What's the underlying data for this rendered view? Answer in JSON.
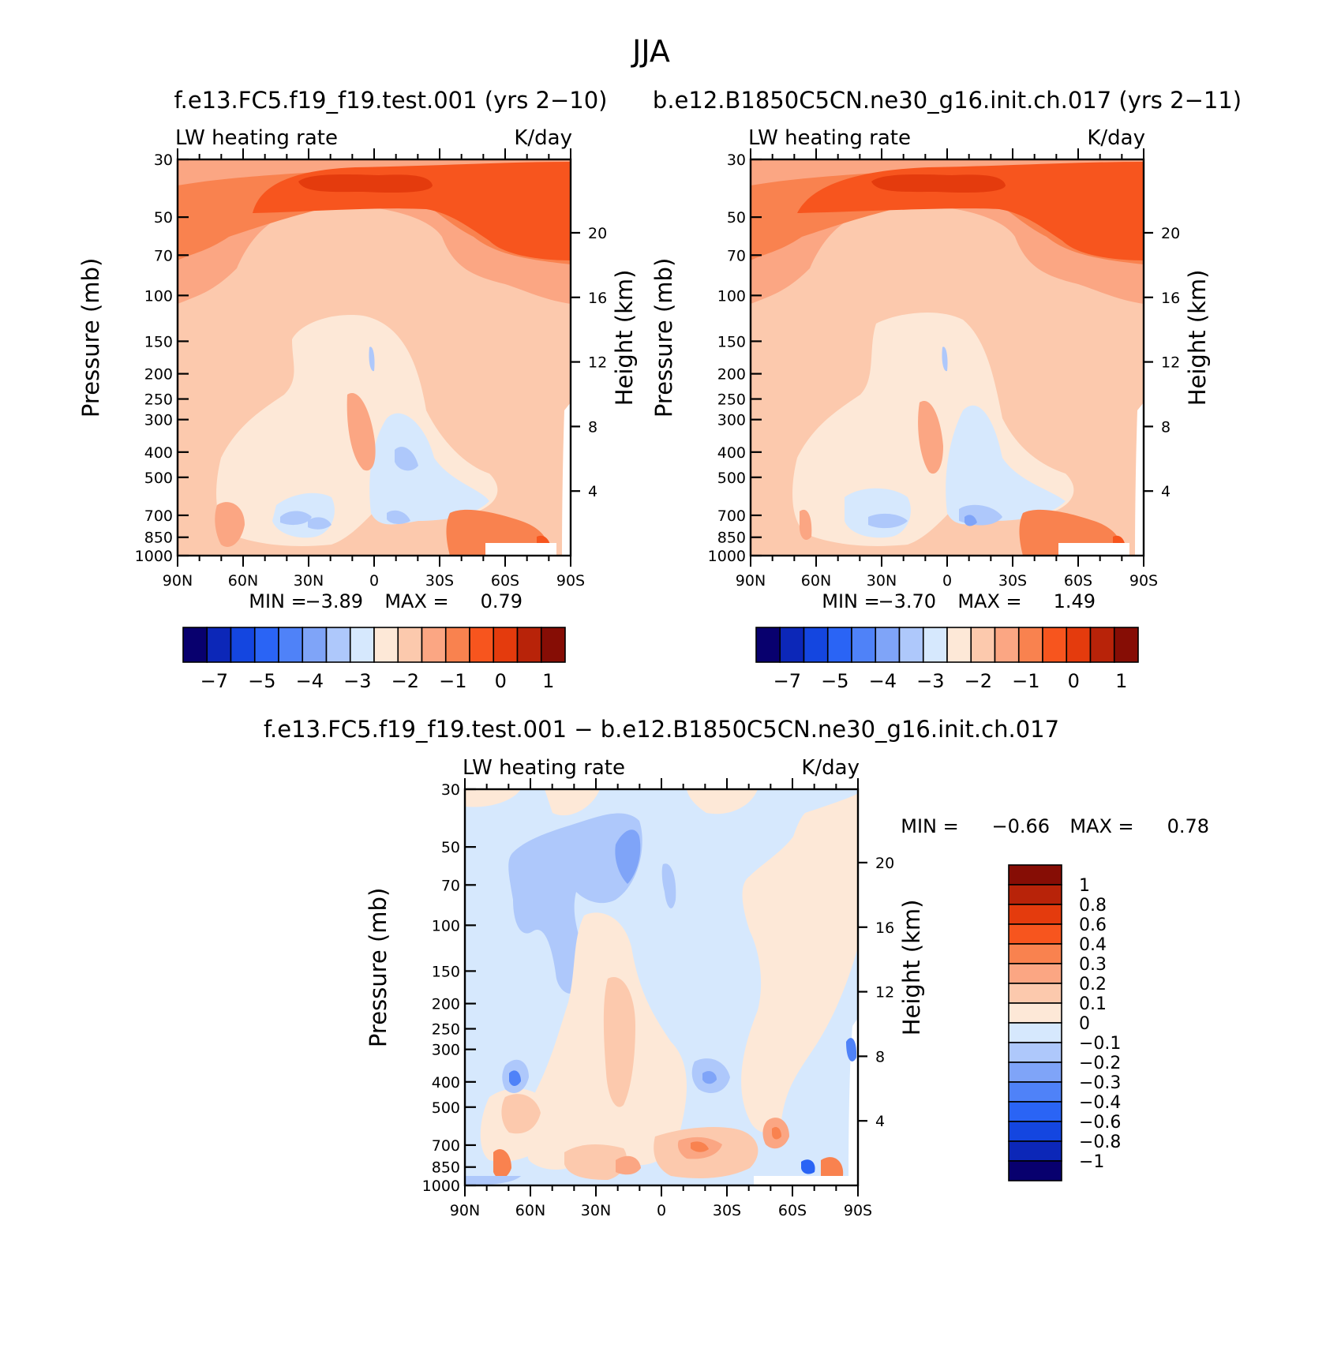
{
  "page": {
    "title": "JJA",
    "panel_top_left_title": "f.e13.FC5.f19_f19.test.001  (yrs 2−10)",
    "panel_top_right_title": "b.e12.B1850C5CN.ne30_g16.init.ch.017  (yrs 2−11)",
    "panel_bottom_title": "f.e13.FC5.f19_f19.test.001  −  b.e12.B1850C5CN.ne30_g16.init.ch.017"
  },
  "colors": {
    "diverging_scale": [
      "#08006e",
      "#0c27b8",
      "#1446e0",
      "#2a64f5",
      "#4f82f8",
      "#7fa4f8",
      "#aec8fb",
      "#d6e8fd",
      "#fde8d7",
      "#fcc9ad",
      "#fba683",
      "#f9824f",
      "#f7551e",
      "#e43b0d",
      "#b82309",
      "#860d05"
    ]
  },
  "chart_data": [
    {
      "type": "heatmap",
      "name_top": "LW heating rate",
      "units": "K/day",
      "ylabel": "Pressure (mb)",
      "ylabel_right": "Height (km)",
      "x_ticks": [
        "90N",
        "60N",
        "30N",
        "0",
        "30S",
        "60S",
        "90S"
      ],
      "y_ticks": [
        30,
        50,
        70,
        100,
        150,
        200,
        250,
        300,
        400,
        500,
        700,
        850,
        1000
      ],
      "y_right_ticks": [
        20,
        16,
        12,
        8,
        4
      ],
      "min_label": "MIN =",
      "min_value": "−3.89",
      "max_label": "MAX =",
      "max_value": "0.79",
      "colorbar_labels": [
        "−7",
        "−5",
        "−4",
        "−3",
        "−2",
        "−1",
        "0",
        "1"
      ]
    },
    {
      "type": "heatmap",
      "name_top": "LW heating rate",
      "units": "K/day",
      "ylabel": "Pressure (mb)",
      "ylabel_right": "Height (km)",
      "x_ticks": [
        "90N",
        "60N",
        "30N",
        "0",
        "30S",
        "60S",
        "90S"
      ],
      "y_ticks": [
        30,
        50,
        70,
        100,
        150,
        200,
        250,
        300,
        400,
        500,
        700,
        850,
        1000
      ],
      "y_right_ticks": [
        20,
        16,
        12,
        8,
        4
      ],
      "min_label": "MIN =",
      "min_value": "−3.70",
      "max_label": "MAX =",
      "max_value": "1.49",
      "colorbar_labels": [
        "−7",
        "−5",
        "−4",
        "−3",
        "−2",
        "−1",
        "0",
        "1"
      ]
    },
    {
      "type": "heatmap",
      "name_top": "LW heating rate",
      "units": "K/day",
      "ylabel": "Pressure (mb)",
      "ylabel_right": "Height (km)",
      "x_ticks": [
        "90N",
        "60N",
        "30N",
        "0",
        "30S",
        "60S",
        "90S"
      ],
      "y_ticks": [
        30,
        50,
        70,
        100,
        150,
        200,
        250,
        300,
        400,
        500,
        700,
        850,
        1000
      ],
      "y_right_ticks": [
        20,
        16,
        12,
        8,
        4
      ],
      "min_label": "MIN =",
      "min_value": "−0.66",
      "max_label": "MAX =",
      "max_value": "0.78",
      "colorbar_labels": [
        "1",
        "0.8",
        "0.6",
        "0.4",
        "0.3",
        "0.2",
        "0.1",
        "0",
        "−0.1",
        "−0.2",
        "−0.3",
        "−0.4",
        "−0.6",
        "−0.8",
        "−1"
      ]
    }
  ]
}
